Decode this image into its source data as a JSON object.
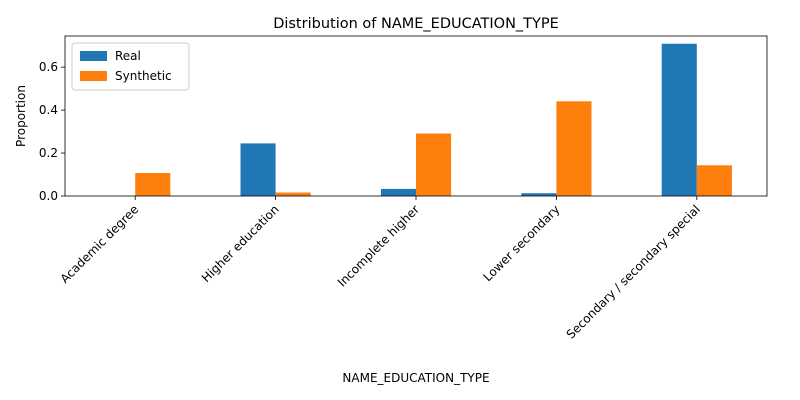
{
  "chart_data": {
    "type": "bar",
    "title": "Distribution of NAME_EDUCATION_TYPE",
    "xlabel": "NAME_EDUCATION_TYPE",
    "ylabel": "Proportion",
    "categories": [
      "Academic degree",
      "Higher education",
      "Incomplete higher",
      "Lower secondary",
      "Secondary / secondary special"
    ],
    "series": [
      {
        "name": "Real",
        "color": "#1f77b4",
        "values": [
          0.0,
          0.245,
          0.033,
          0.013,
          0.709
        ]
      },
      {
        "name": "Synthetic",
        "color": "#ff7f0e",
        "values": [
          0.107,
          0.016,
          0.291,
          0.441,
          0.143
        ]
      }
    ],
    "ylim": [
      0,
      0.745
    ],
    "yticks": [
      0.0,
      0.2,
      0.4,
      0.6
    ],
    "ytick_labels": [
      "0.0",
      "0.2",
      "0.4",
      "0.6"
    ],
    "grid": false,
    "legend_position": "top-left",
    "xtick_rotation": 45
  }
}
